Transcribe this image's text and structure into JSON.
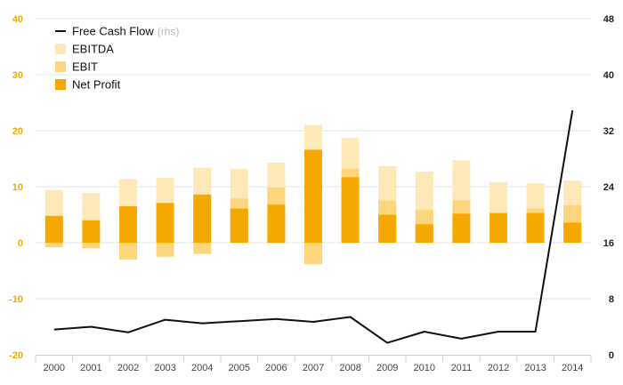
{
  "chart_data": {
    "type": "bar",
    "categories": [
      "2000",
      "2001",
      "2002",
      "2003",
      "2004",
      "2005",
      "2006",
      "2007",
      "2008",
      "2009",
      "2010",
      "2011",
      "2012",
      "2013",
      "2014"
    ],
    "series": [
      {
        "name": "EBITDA",
        "type": "bar",
        "axis": "left",
        "color": "#fde9b8",
        "values": [
          9.4,
          8.9,
          11.4,
          11.6,
          13.4,
          13.2,
          14.3,
          21.0,
          18.7,
          13.7,
          12.7,
          14.7,
          10.8,
          10.6,
          11.1
        ]
      },
      {
        "name": "EBIT",
        "type": "bar",
        "axis": "left",
        "color": "#fdd57c",
        "values": [
          -0.8,
          -1.0,
          -3.0,
          -2.5,
          -2.0,
          7.9,
          9.9,
          -3.8,
          13.2,
          7.5,
          5.9,
          7.6,
          5.1,
          6.1,
          6.7
        ]
      },
      {
        "name": "Net Profit",
        "type": "bar",
        "axis": "left",
        "color": "#f5a800",
        "values": [
          4.8,
          4.0,
          6.5,
          7.1,
          8.6,
          6.1,
          6.8,
          16.6,
          11.7,
          5.0,
          3.3,
          5.2,
          5.3,
          5.3,
          3.6
        ]
      },
      {
        "name": "Free Cash Flow",
        "name_suffix": "(rhs)",
        "type": "line",
        "axis": "right",
        "color": "#111111",
        "values": [
          3.6,
          4.0,
          3.2,
          5.0,
          4.5,
          4.8,
          5.1,
          4.7,
          5.4,
          1.7,
          3.3,
          2.3,
          3.3,
          3.3,
          34.9
        ]
      }
    ],
    "yleft": {
      "min": -20,
      "max": 40,
      "ticks": [
        -20,
        -10,
        0,
        10,
        20,
        30,
        40
      ]
    },
    "yright": {
      "min": 0,
      "max": 48,
      "ticks": [
        0,
        8,
        16,
        24,
        32,
        40,
        48
      ]
    },
    "grid": true,
    "legend_position": "top-left",
    "title": "",
    "xlabel": "",
    "ylabel": ""
  }
}
